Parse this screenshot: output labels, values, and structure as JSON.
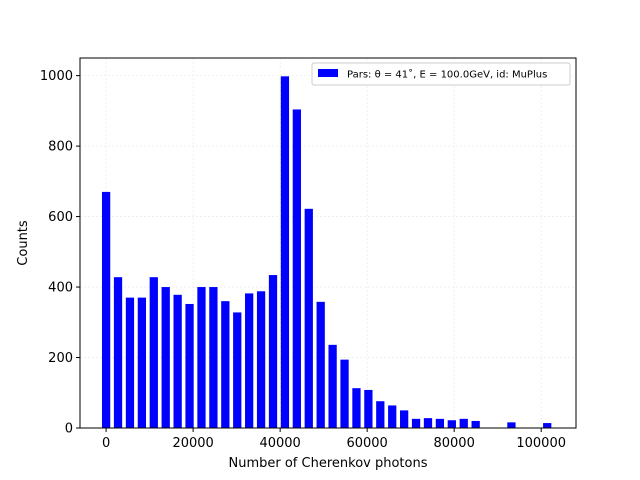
{
  "chart_data": {
    "type": "bar",
    "title": "",
    "xlabel": "Number of Cherenkov photons",
    "ylabel": "Counts",
    "xlim": [
      -6000,
      108000
    ],
    "ylim": [
      0,
      1050
    ],
    "xticks": [
      0,
      20000,
      40000,
      60000,
      80000,
      100000
    ],
    "xtick_labels": [
      "0",
      "20000",
      "40000",
      "60000",
      "80000",
      "100000"
    ],
    "yticks": [
      0,
      200,
      400,
      600,
      800,
      1000
    ],
    "ytick_labels": [
      "0",
      "200",
      "400",
      "600",
      "800",
      "1000"
    ],
    "grid": true,
    "bar_width": 1900,
    "color": "#0000ff",
    "legend": {
      "placement": "top-right",
      "label": "Pars: θ = 41˚, E = 100.0GeV, id: MuPlus"
    },
    "series": [
      {
        "name": "Pars: θ = 41˚, E = 100.0GeV, id: MuPlus",
        "x": [
          0,
          2740,
          5480,
          8220,
          10960,
          13700,
          16440,
          19180,
          21920,
          24660,
          27400,
          30140,
          32880,
          35620,
          38360,
          41100,
          43840,
          46580,
          49320,
          52060,
          54800,
          57540,
          60280,
          63020,
          65760,
          68500,
          71240,
          73980,
          76720,
          79460,
          82200,
          84940,
          93160,
          101380
        ],
        "values": [
          670,
          428,
          370,
          370,
          428,
          400,
          378,
          352,
          400,
          400,
          360,
          328,
          382,
          388,
          434,
          998,
          904,
          622,
          358,
          236,
          194,
          113,
          108,
          76,
          64,
          50,
          26,
          28,
          26,
          22,
          26,
          20,
          16,
          14
        ]
      }
    ]
  }
}
